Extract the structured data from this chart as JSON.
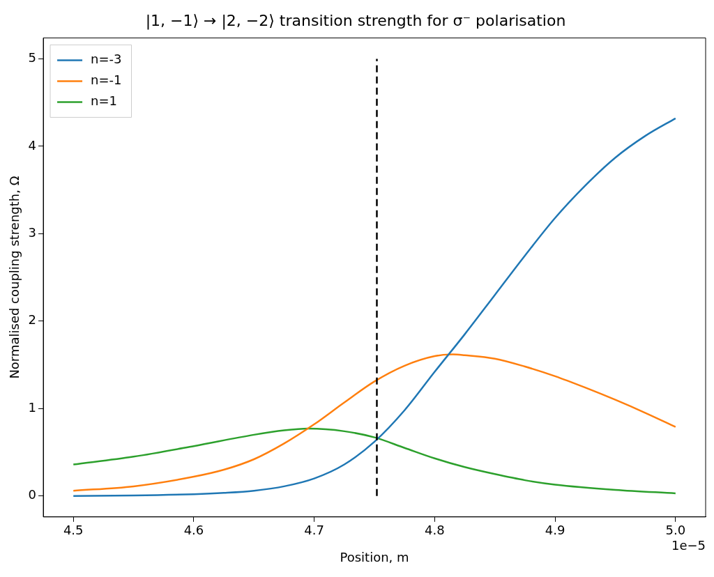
{
  "chart_data": {
    "type": "line",
    "title": "|1, −1⟩ → |2, −2⟩ transition strength for σ⁻ polarisation",
    "xlabel": "Position, m",
    "ylabel": "Normalised coupling strength, Ω",
    "annotations": [
      "1e−5"
    ],
    "legend": "top left",
    "grid": false,
    "marker": "none",
    "line_style": "solid",
    "xlim": [
      4.475,
      5.025
    ],
    "xticks": [
      4.5,
      4.6,
      4.7,
      4.8,
      4.9,
      {
        "value": 5,
        "label": "5.0"
      }
    ],
    "ylim": [
      -0.24,
      5.24
    ],
    "yticks": [
      0,
      1,
      2,
      3,
      4,
      5
    ],
    "ref_lines": [
      {
        "axis": "x",
        "value": 4.752,
        "color": "#000000",
        "line_style": "dashed"
      }
    ],
    "series": [
      {
        "name": "n=-3",
        "color": "#1f77b4",
        "x": [
          4.5,
          4.55,
          4.6,
          4.625,
          4.65,
          4.675,
          4.7,
          4.725,
          4.75,
          4.775,
          4.8,
          4.825,
          4.85,
          4.875,
          4.9,
          4.925,
          4.95,
          4.975,
          5.0
        ],
        "values": [
          0.0,
          0.005,
          0.02,
          0.035,
          0.06,
          0.11,
          0.2,
          0.36,
          0.62,
          0.98,
          1.42,
          1.85,
          2.3,
          2.75,
          3.18,
          3.55,
          3.87,
          4.12,
          4.32
        ]
      },
      {
        "name": "n=-1",
        "color": "#ff7f0e",
        "x": [
          4.5,
          4.55,
          4.6,
          4.625,
          4.65,
          4.675,
          4.7,
          4.725,
          4.75,
          4.775,
          4.8,
          4.815,
          4.825,
          4.85,
          4.875,
          4.9,
          4.925,
          4.95,
          4.975,
          5.0
        ],
        "values": [
          0.06,
          0.11,
          0.22,
          0.3,
          0.42,
          0.6,
          0.82,
          1.07,
          1.31,
          1.49,
          1.6,
          1.62,
          1.61,
          1.57,
          1.48,
          1.37,
          1.24,
          1.1,
          0.95,
          0.79
        ]
      },
      {
        "name": "n=1",
        "color": "#2ca02c",
        "x": [
          4.5,
          4.55,
          4.6,
          4.65,
          4.675,
          4.695,
          4.725,
          4.75,
          4.775,
          4.8,
          4.825,
          4.85,
          4.875,
          4.9,
          4.95,
          5.0
        ],
        "values": [
          0.36,
          0.45,
          0.57,
          0.7,
          0.75,
          0.77,
          0.74,
          0.67,
          0.55,
          0.43,
          0.33,
          0.25,
          0.18,
          0.13,
          0.07,
          0.03
        ]
      }
    ]
  }
}
